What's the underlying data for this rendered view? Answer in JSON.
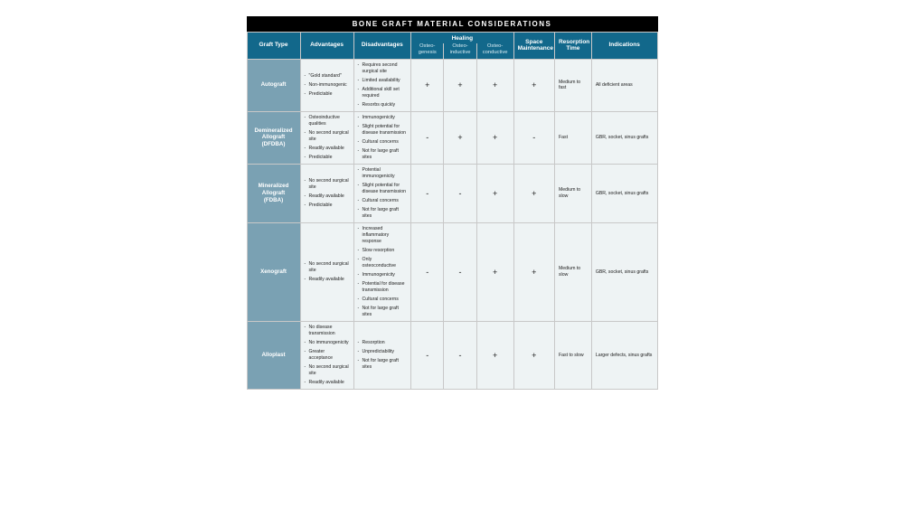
{
  "title": "BONE GRAFT MATERIAL CONSIDERATIONS",
  "colors": {
    "title_bg": "#000000",
    "title_fg": "#ffffff",
    "header_bg": "#12688b",
    "header_fg": "#ffffff",
    "row_head_bg": "#7aa1b3",
    "cell_bg": "#eef3f4",
    "border": "#c8c8c8"
  },
  "columns": {
    "graft_type": "Graft Type",
    "advantages": "Advantages",
    "disadvantages": "Disadvantages",
    "healing_group": "Healing",
    "osteogenesis": "Osteo-\ngenesis",
    "osteoinductive": "Osteo-\ninductive",
    "osteoconductive": "Osteo-\nconductive",
    "space": "Space\nMaintenance",
    "resorption": "Resorption\nTime",
    "indications": "Indications"
  },
  "col_widths_pct": [
    13,
    13,
    14,
    8,
    8,
    9,
    10,
    9,
    16
  ],
  "rows": [
    {
      "name": "Autograft",
      "adv": [
        "\"Gold standard\"",
        "Non-immunogenic",
        "Predictable"
      ],
      "disadv": [
        "Requires second surgical site",
        "Limited availability",
        "Additional skill set required",
        "Resorbs quickly"
      ],
      "osteogenesis": "+",
      "osteoinductive": "+",
      "osteoconductive": "+",
      "space": "+",
      "resorption": "Medium to fast",
      "indications": "All deficient areas"
    },
    {
      "name": "Demineralized\nAllograft\n(DFDBA)",
      "adv": [
        "Osteoinductive qualities",
        "No second surgical site",
        "Readily available",
        "Predictable"
      ],
      "disadv": [
        "Immunogenicity",
        "Slight potential for disease transmission",
        "Cultural concerns",
        "Not for large graft sites"
      ],
      "osteogenesis": "-",
      "osteoinductive": "+",
      "osteoconductive": "+",
      "space": "-",
      "resorption": "Fast",
      "indications": "GBR, socket, sinus grafts"
    },
    {
      "name": "Mineralized\nAllograft\n(FDBA)",
      "adv": [
        "No second surgical site",
        "Readily available",
        "Predictable"
      ],
      "disadv": [
        "Potential immunogenicity",
        "Slight potential for disease transmission",
        "Cultural concerns",
        "Not for large graft sites"
      ],
      "osteogenesis": "-",
      "osteoinductive": "-",
      "osteoconductive": "+",
      "space": "+",
      "resorption": "Medium to slow",
      "indications": "GBR, socket, sinus grafts"
    },
    {
      "name": "Xenograft",
      "adv": [
        "No second surgical site",
        "Readily available"
      ],
      "disadv": [
        "Increased inflammatory response",
        "Slow resorption",
        "Only osteoconductive",
        "Immunogenicity",
        "Potential for disease transmission",
        "Cultural concerns",
        "Not for large graft sites"
      ],
      "osteogenesis": "-",
      "osteoinductive": "-",
      "osteoconductive": "+",
      "space": "+",
      "resorption": "Medium to slow",
      "indications": "GBR, socket, sinus grafts"
    },
    {
      "name": "Alloplast",
      "adv": [
        "No disease transmission",
        "No immunogenicity",
        "Greater acceptance",
        "No second surgical site",
        "Readily available"
      ],
      "disadv": [
        "Resorption",
        "Unpredictability",
        "Not for large graft sites"
      ],
      "osteogenesis": "-",
      "osteoinductive": "-",
      "osteoconductive": "+",
      "space": "+",
      "resorption": "Fast to slow",
      "indications": "Larger defects, sinus grafts"
    }
  ]
}
